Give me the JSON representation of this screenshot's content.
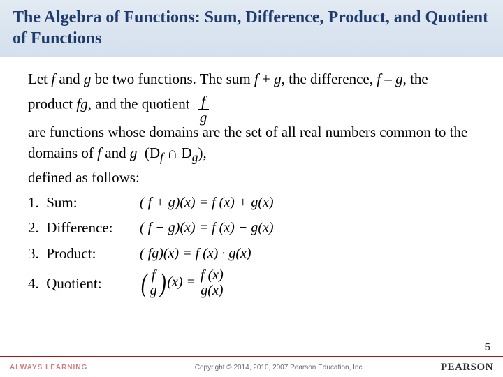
{
  "title": "The Algebra of Functions:  Sum, Difference, Product, and Quotient of Functions",
  "intro": {
    "line1_a": "Let ",
    "line1_b": " and ",
    "line1_c": " be two functions.  The sum ",
    "line1_d": " + ",
    "line1_e": ", the difference, ",
    "line1_f": " – ",
    "line1_g": ", the product ",
    "line1_h": ", and the quotient",
    "line2": "are functions whose domains are the set of all real numbers common to the domains of ",
    "line2_b": " and ",
    "domain_expr": "(D",
    "domain_mid": " ∩ D",
    "domain_end": "),",
    "line3": "defined as follows:",
    "f": "f",
    "g": "g",
    "fg": "fg"
  },
  "defs": [
    {
      "n": "1.",
      "label": "Sum:",
      "lhs_open": "( ",
      "lhs_inner": "f + g",
      "eq": ")(x) = f (x) + g(x)"
    },
    {
      "n": "2.",
      "label": "Difference:",
      "lhs_open": "( ",
      "lhs_inner": "f − g",
      "eq": ")(x) = f (x) − g(x)"
    },
    {
      "n": "3.",
      "label": "Product:",
      "lhs_open": "( ",
      "lhs_inner": "fg",
      "eq": ")(x) = f (x) · g(x)"
    }
  ],
  "quotient": {
    "n": "4.",
    "label": "Quotient:",
    "frac_top": "f",
    "frac_bot": "g",
    "after": "(x) =",
    "rhs_top": "f (x)",
    "rhs_bot": "g(x)"
  },
  "footer": {
    "left": "ALWAYS LEARNING",
    "copy": "Copyright © 2014, 2010, 2007 Pearson Education, Inc.",
    "right": "PEARSON"
  },
  "page": "5",
  "colors": {
    "title_text": "#1f3a6d",
    "title_bg_top": "#e2eaf2",
    "title_bg_bot": "#d4e0ee",
    "footer_rule": "#b01116"
  }
}
